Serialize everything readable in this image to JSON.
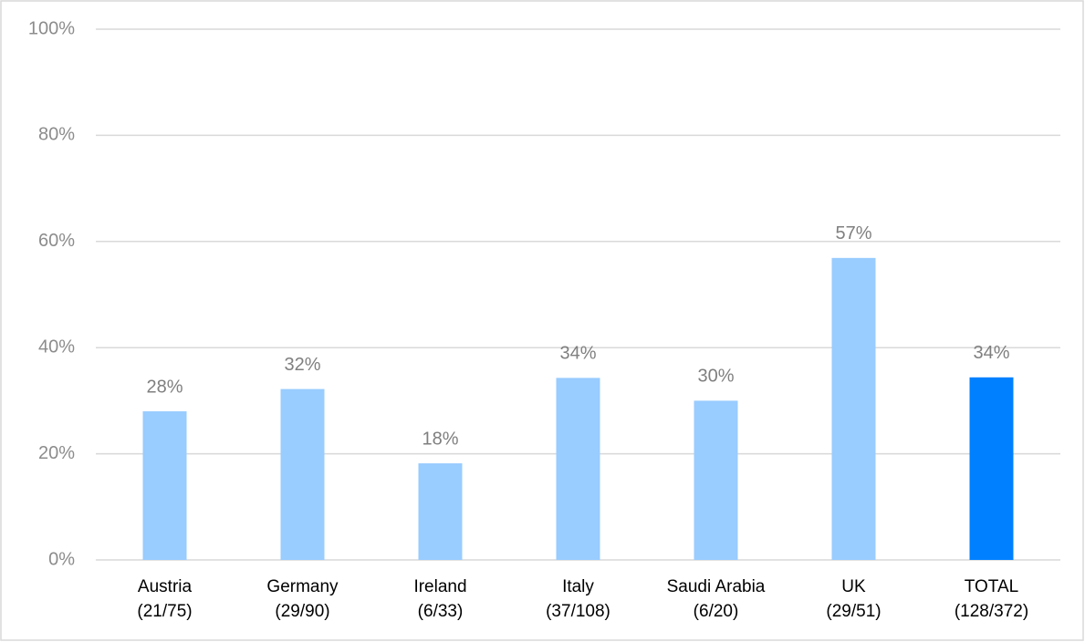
{
  "chart_data": {
    "type": "bar",
    "categories": [
      [
        "Austria",
        "(21/75)"
      ],
      [
        "Germany",
        "(29/90)"
      ],
      [
        "Ireland",
        "(6/33)"
      ],
      [
        "Italy",
        "(37/108)"
      ],
      [
        "Saudi Arabia",
        "(6/20)"
      ],
      [
        "UK",
        "(29/51)"
      ],
      [
        "TOTAL",
        "(128/372)"
      ]
    ],
    "values": [
      28,
      32.2,
      18.2,
      34.3,
      30,
      56.9,
      34.4
    ],
    "value_labels": [
      "28%",
      "32%",
      "18%",
      "34%",
      "30%",
      "57%",
      "34%"
    ],
    "colors": [
      "#99ccff",
      "#99ccff",
      "#99ccff",
      "#99ccff",
      "#99ccff",
      "#99ccff",
      "#0080ff"
    ],
    "ylim": [
      0,
      100
    ],
    "yticks": [
      {
        "value": 0,
        "label": "0%"
      },
      {
        "value": 20,
        "label": "20%"
      },
      {
        "value": 40,
        "label": "40%"
      },
      {
        "value": 60,
        "label": "60%"
      },
      {
        "value": 80,
        "label": "80%"
      },
      {
        "value": 100,
        "label": "100%"
      }
    ],
    "grid": true
  }
}
